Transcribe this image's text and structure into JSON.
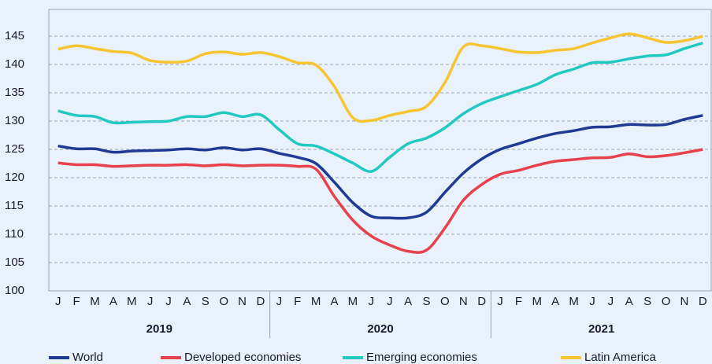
{
  "chart_data": {
    "type": "line",
    "categories": [
      "J",
      "F",
      "M",
      "A",
      "M",
      "J",
      "J",
      "A",
      "S",
      "O",
      "N",
      "D",
      "J",
      "F",
      "M",
      "A",
      "M",
      "J",
      "J",
      "A",
      "S",
      "O",
      "N",
      "D",
      "J",
      "F",
      "M",
      "A",
      "M",
      "J",
      "J",
      "A",
      "S",
      "O",
      "N",
      "D"
    ],
    "years": [
      "2019",
      "2020",
      "2021"
    ],
    "series": [
      {
        "name": "World",
        "color": "#1f3a93",
        "values": [
          125.6,
          125.1,
          125.1,
          124.5,
          124.7,
          124.8,
          124.9,
          125.1,
          124.9,
          125.3,
          124.9,
          125.1,
          124.3,
          123.6,
          122.5,
          119.2,
          115.6,
          113.2,
          112.9,
          112.9,
          113.9,
          117.4,
          120.8,
          123.3,
          125.0,
          126.0,
          127.0,
          127.8,
          128.3,
          128.9,
          129.0,
          129.4,
          129.3,
          129.4,
          130.3,
          131.0
        ]
      },
      {
        "name": "Developed economies",
        "color": "#e8414e",
        "values": [
          122.6,
          122.3,
          122.3,
          122.0,
          122.1,
          122.2,
          122.2,
          122.3,
          122.1,
          122.3,
          122.1,
          122.2,
          122.2,
          122.0,
          121.5,
          116.7,
          112.5,
          109.7,
          108.1,
          107.0,
          107.2,
          111.1,
          116.0,
          118.8,
          120.6,
          121.3,
          122.2,
          122.9,
          123.2,
          123.5,
          123.6,
          124.2,
          123.7,
          123.9,
          124.4,
          125.0
        ]
      },
      {
        "name": "Emerging economies",
        "color": "#22c9c0",
        "values": [
          131.8,
          131.0,
          130.8,
          129.7,
          129.8,
          129.9,
          130.0,
          130.8,
          130.8,
          131.5,
          130.8,
          131.1,
          128.5,
          126.0,
          125.6,
          124.2,
          122.6,
          121.1,
          123.6,
          126.0,
          127.0,
          128.8,
          131.3,
          133.1,
          134.3,
          135.4,
          136.5,
          138.2,
          139.2,
          140.3,
          140.4,
          141.0,
          141.5,
          141.7,
          142.8,
          143.8
        ]
      },
      {
        "name": "Latin America",
        "color": "#f7c531",
        "values": [
          142.7,
          143.3,
          142.8,
          142.3,
          142.0,
          140.7,
          140.4,
          140.6,
          141.9,
          142.2,
          141.8,
          142.1,
          141.4,
          140.3,
          139.9,
          136.1,
          130.6,
          130.1,
          131.0,
          131.7,
          132.6,
          136.8,
          143.1,
          143.3,
          142.8,
          142.2,
          142.1,
          142.5,
          142.8,
          143.8,
          144.7,
          145.4,
          144.7,
          143.9,
          144.2,
          145.0
        ]
      }
    ],
    "ylim": [
      100,
      150
    ],
    "yticks": [
      100,
      105,
      110,
      115,
      120,
      125,
      130,
      135,
      140,
      145
    ],
    "grid": true
  }
}
